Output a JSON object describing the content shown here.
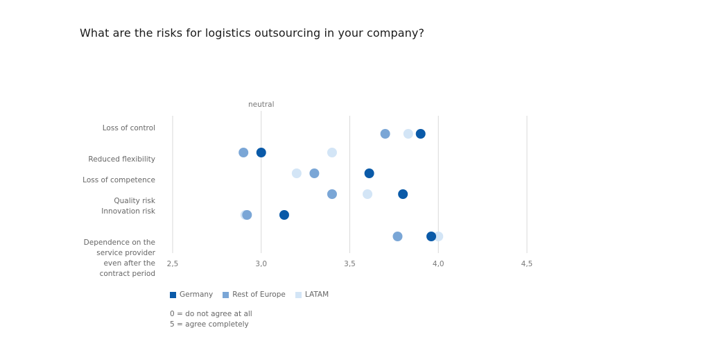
{
  "title": "What are the risks for logistics outsourcing in your company?",
  "chart_data": {
    "type": "scatter",
    "reference_label": "neutral",
    "reference_value": 3.0,
    "xlim": [
      2.5,
      4.5
    ],
    "ticks": [
      {
        "value": 2.5,
        "label": "2,5"
      },
      {
        "value": 3.0,
        "label": "3,0"
      },
      {
        "value": 3.5,
        "label": "3,5"
      },
      {
        "value": 4.0,
        "label": "4,0"
      },
      {
        "value": 4.5,
        "label": "4,5"
      }
    ],
    "categories": [
      "Loss of control",
      "Reduced flexibility",
      "Loss of competence",
      "Quality risk",
      "Innovation risk",
      "Dependence on the service provider even after the contract period"
    ],
    "series": [
      {
        "name": "Germany",
        "color": "#0a5aa8",
        "values": [
          3.9,
          3.0,
          3.61,
          3.8,
          3.13,
          3.96
        ]
      },
      {
        "name": "Rest of Europe",
        "color": "#7aa6d6",
        "values": [
          3.7,
          2.9,
          3.3,
          3.4,
          2.92,
          3.77
        ]
      },
      {
        "name": "LATAM",
        "color": "#d3e5f6",
        "values": [
          3.83,
          3.4,
          3.2,
          3.6,
          2.91,
          4.0
        ]
      }
    ],
    "grid": true,
    "legend_position": "bottom-left"
  },
  "notes": [
    "0 = do not agree at all",
    "5 = agree completely"
  ]
}
